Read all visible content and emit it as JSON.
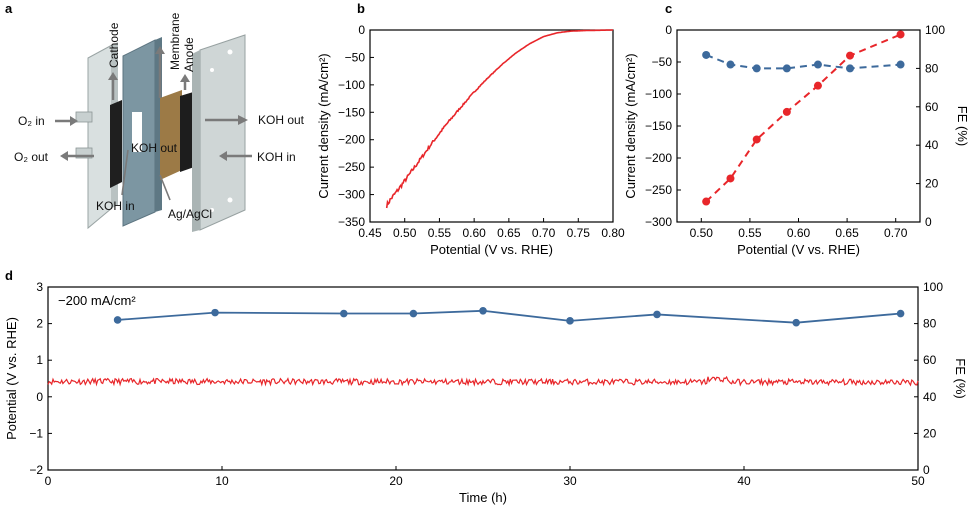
{
  "panels": {
    "a": {
      "letter": "a",
      "labels": {
        "cathode": "Cathode",
        "membrane": "Membrane",
        "anode": "Anode",
        "o2_in": "O₂ in",
        "o2_out": "O₂ out",
        "koh_out_right": "KOH out",
        "koh_in_right": "KOH in",
        "koh_out_mid": "KOH out",
        "koh_in_left": "KOH in",
        "ref": "Ag/AgCl"
      }
    }
  },
  "chart_data": [
    {
      "id": "b",
      "panel": "b",
      "type": "line",
      "xlabel": "Potential (V vs. RHE)",
      "ylabel": "Current density (mA/cm²)",
      "xlim": [
        0.45,
        0.8
      ],
      "ylim": [
        -350,
        0
      ],
      "xticks": [
        0.45,
        0.5,
        0.55,
        0.6,
        0.65,
        0.7,
        0.75,
        0.8
      ],
      "yticks": [
        0,
        -50,
        -100,
        -150,
        -200,
        -250,
        -300,
        -350
      ],
      "series": [
        {
          "color": "#e8262a",
          "x": [
            0.474,
            0.48,
            0.49,
            0.5,
            0.52,
            0.54,
            0.56,
            0.58,
            0.6,
            0.62,
            0.64,
            0.66,
            0.68,
            0.7,
            0.72,
            0.74,
            0.76,
            0.78,
            0.8
          ],
          "y": [
            -320,
            -308,
            -292,
            -275,
            -240,
            -205,
            -172,
            -142,
            -113,
            -87,
            -63,
            -42,
            -25,
            -12,
            -5,
            -2,
            -1,
            -0.5,
            0
          ]
        }
      ]
    },
    {
      "id": "c",
      "panel": "c",
      "type": "line",
      "xlabel": "Potential (V vs. RHE)",
      "ylabel": "Current density (mA/cm²)",
      "ylabel2": "FE (%)",
      "xlim": [
        0.475,
        0.725
      ],
      "ylim": [
        -300,
        0
      ],
      "ylim2": [
        0,
        100
      ],
      "xticks": [
        0.5,
        0.55,
        0.6,
        0.65,
        0.7
      ],
      "yticks": [
        0,
        -50,
        -100,
        -150,
        -200,
        -250,
        -300
      ],
      "yticks2": [
        0,
        20,
        40,
        60,
        80,
        100
      ],
      "series": [
        {
          "axis": "left",
          "color": "#e8262a",
          "x": [
            0.505,
            0.53,
            0.557,
            0.588,
            0.62,
            0.653,
            0.705
          ],
          "y": [
            -268,
            -232,
            -171,
            -128,
            -87,
            -40,
            -7
          ]
        },
        {
          "axis": "right",
          "color": "#3d6a9c",
          "x": [
            0.505,
            0.53,
            0.557,
            0.588,
            0.62,
            0.653,
            0.705
          ],
          "y": [
            87,
            82,
            80,
            80,
            82,
            80,
            82
          ]
        }
      ]
    },
    {
      "id": "d",
      "panel": "d",
      "type": "line",
      "annotation": "−200 mA/cm²",
      "xlabel": "Time (h)",
      "ylabel": "Potential (V vs. RHE)",
      "ylabel2": "FE (%)",
      "xlim": [
        0,
        50
      ],
      "ylim": [
        -2,
        3
      ],
      "ylim2": [
        0,
        100
      ],
      "xticks": [
        0,
        10,
        20,
        30,
        40,
        50
      ],
      "yticks": [
        -2,
        -1,
        0,
        1,
        2,
        3
      ],
      "yticks2": [
        0,
        20,
        40,
        60,
        80,
        100
      ],
      "series": [
        {
          "axis": "left",
          "color": "#e8262a",
          "x": [
            0,
            50
          ],
          "y": [
            0.42,
            0.4
          ],
          "noise": 0.08
        },
        {
          "axis": "right",
          "color": "#3d6a9c",
          "x": [
            4,
            9.6,
            17,
            21,
            25,
            30,
            35,
            43,
            49
          ],
          "y": [
            82,
            86,
            85.5,
            85.5,
            87,
            81.5,
            85,
            80.5,
            85.5
          ]
        }
      ]
    }
  ]
}
